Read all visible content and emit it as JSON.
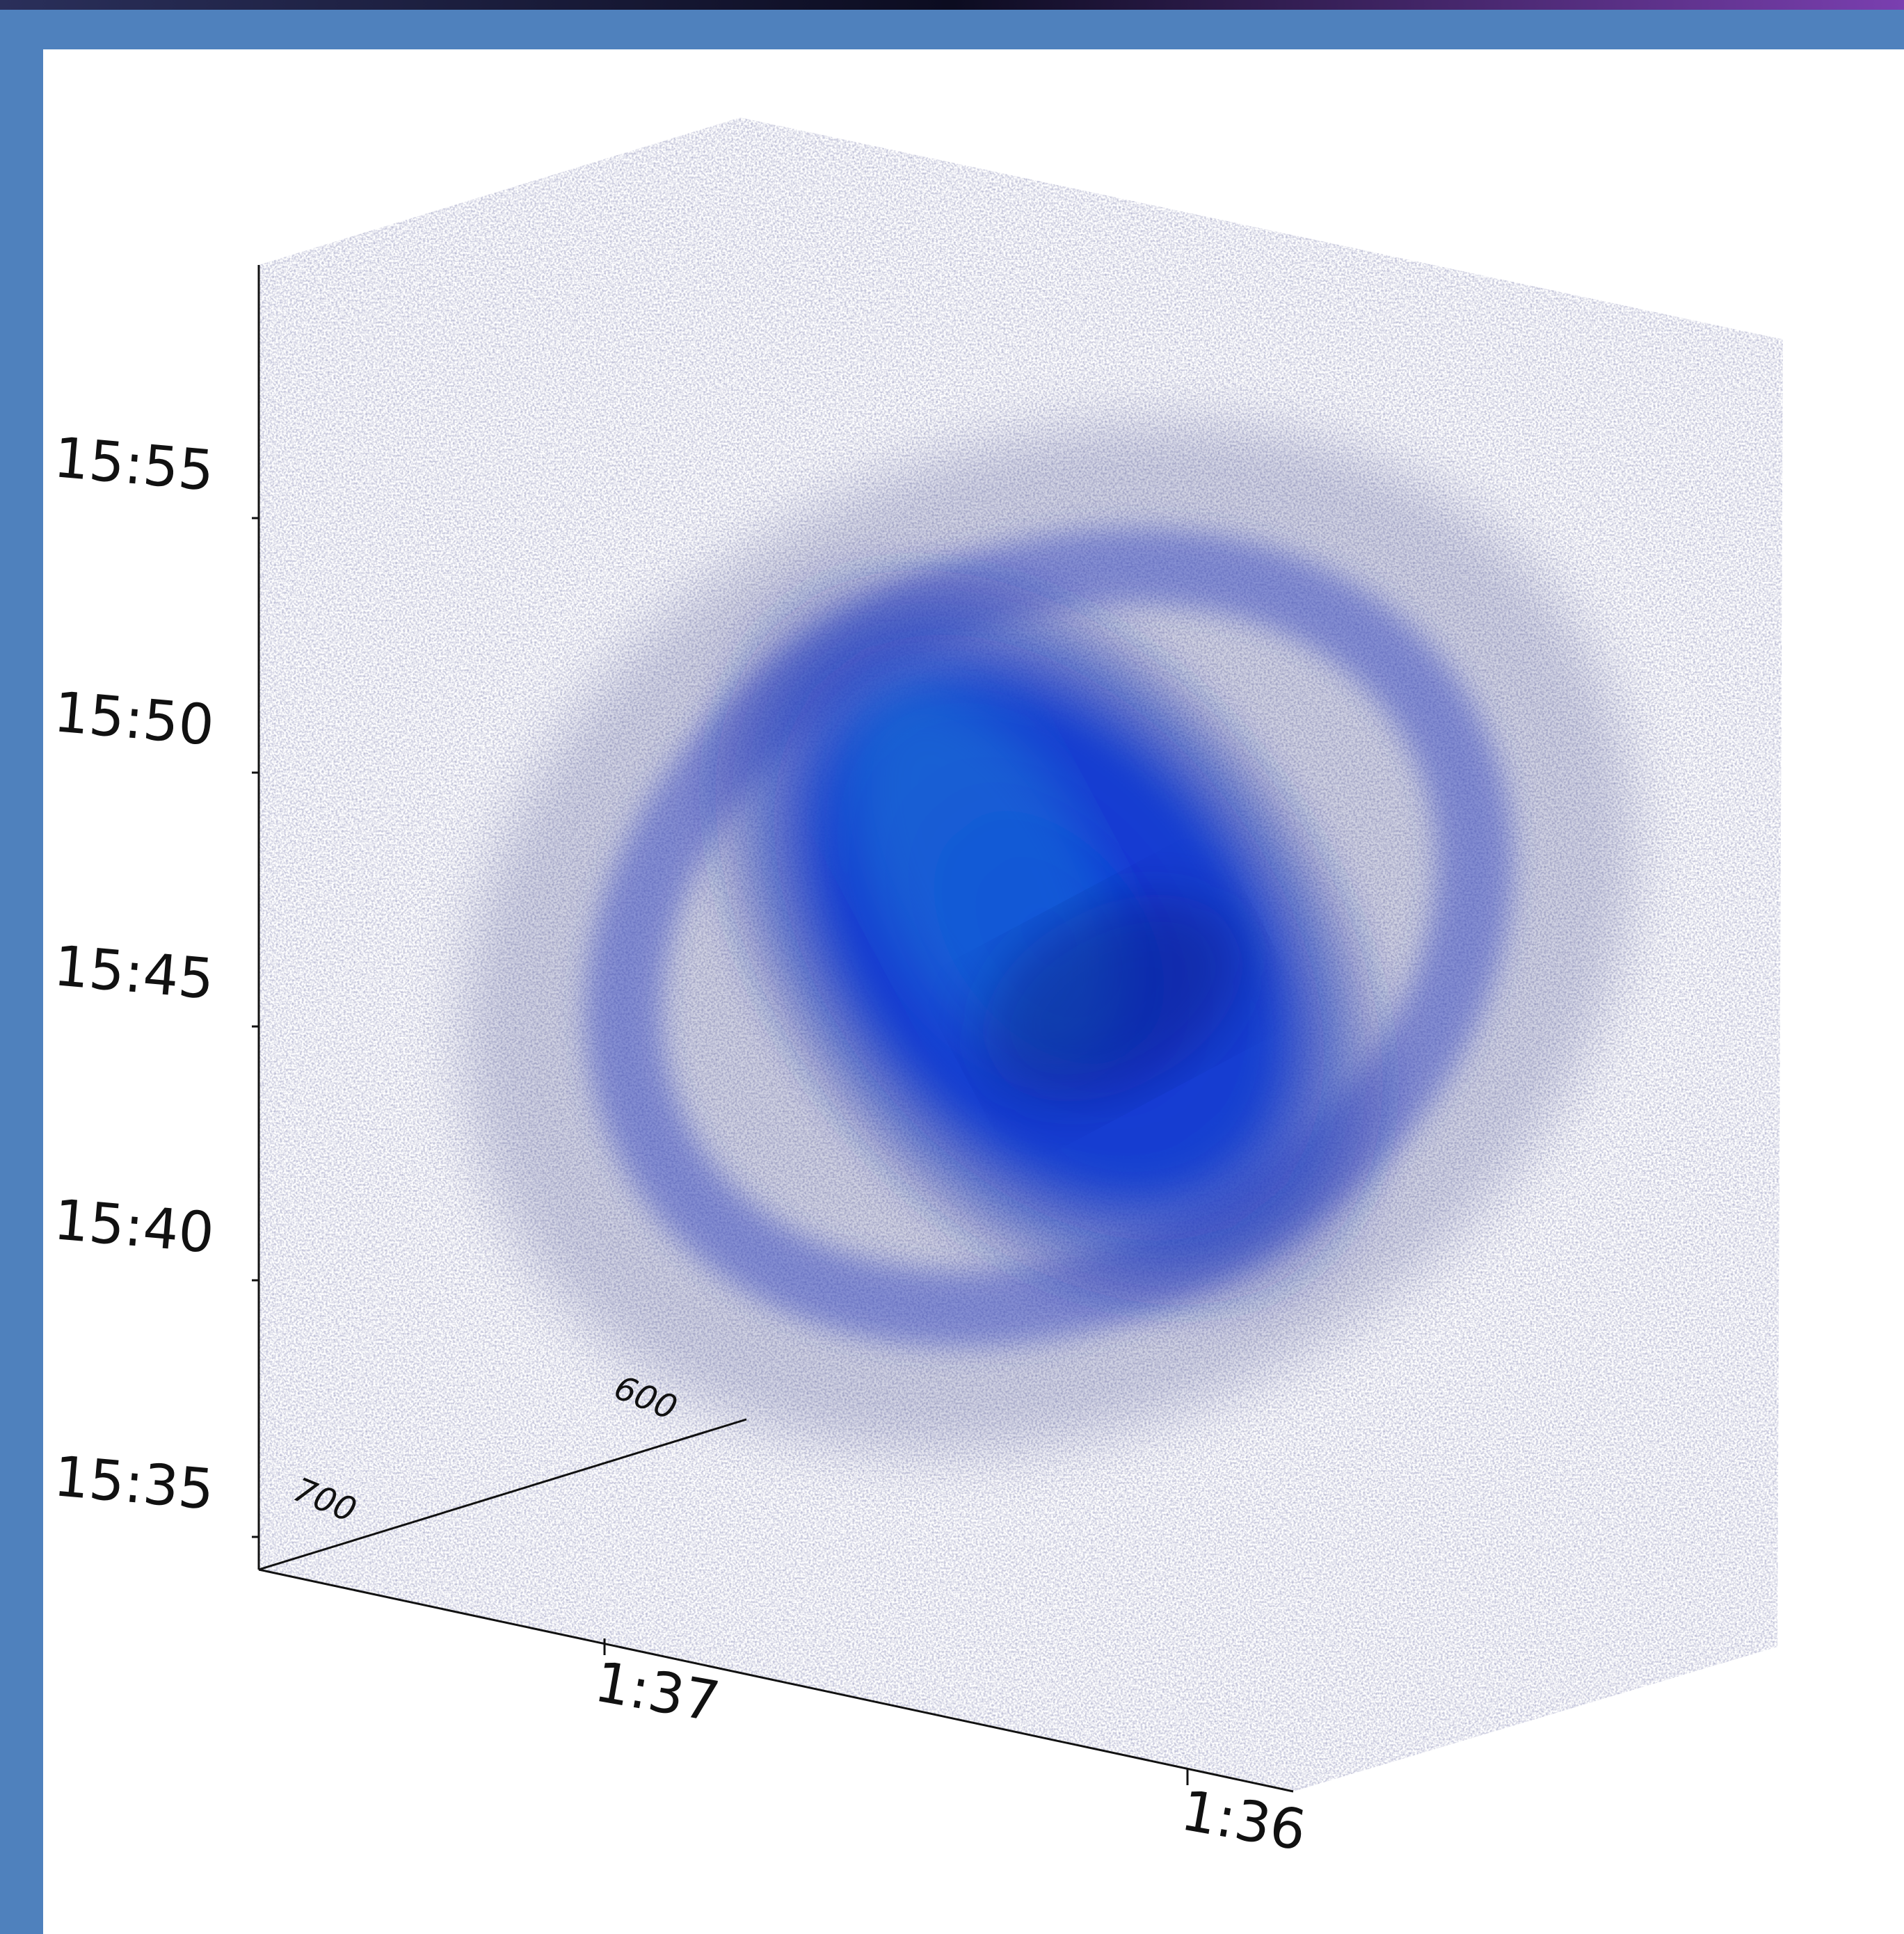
{
  "axes": {
    "vertical": {
      "ticks": [
        "15:35",
        "15:40",
        "15:45",
        "15:50",
        "15:55"
      ]
    },
    "horizontal": {
      "ticks": [
        "1:37",
        "1:36"
      ]
    },
    "depth": {
      "ticks": [
        700,
        600
      ]
    }
  }
}
